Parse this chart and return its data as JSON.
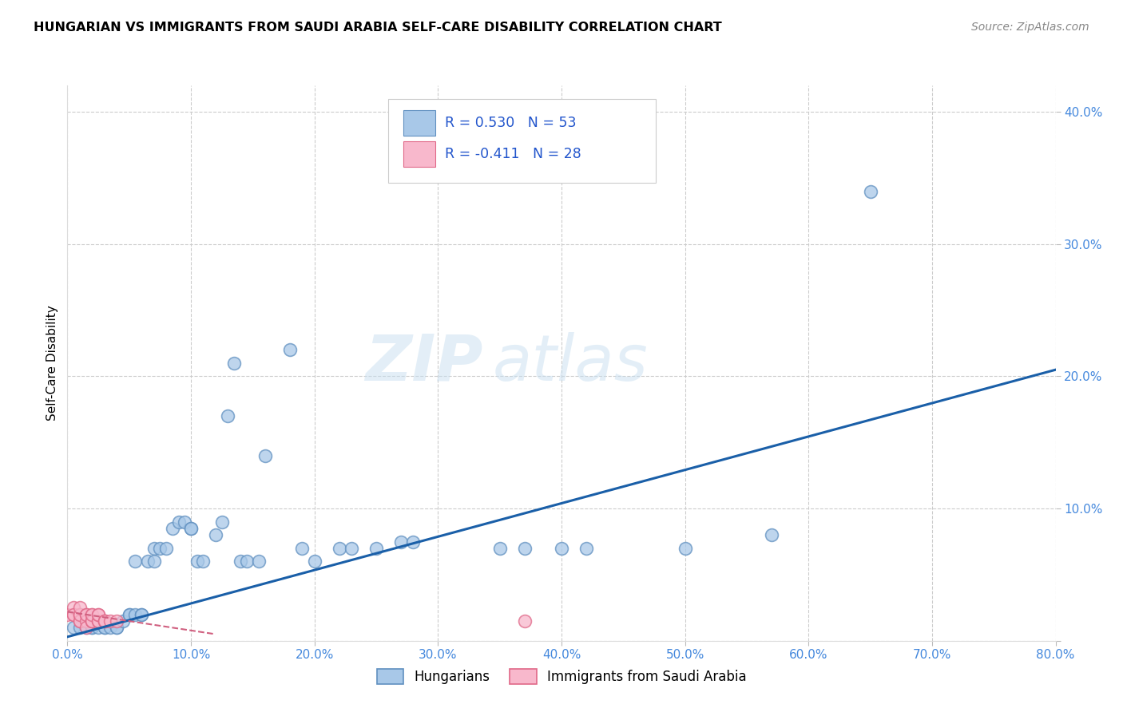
{
  "title": "HUNGARIAN VS IMMIGRANTS FROM SAUDI ARABIA SELF-CARE DISABILITY CORRELATION CHART",
  "source": "Source: ZipAtlas.com",
  "ylabel": "Self-Care Disability",
  "xlim": [
    0.0,
    0.8
  ],
  "ylim": [
    0.0,
    0.42
  ],
  "xticks": [
    0.0,
    0.1,
    0.2,
    0.3,
    0.4,
    0.5,
    0.6,
    0.7,
    0.8
  ],
  "yticks": [
    0.0,
    0.1,
    0.2,
    0.3,
    0.4
  ],
  "ytick_labels": [
    "",
    "10.0%",
    "20.0%",
    "30.0%",
    "40.0%"
  ],
  "xtick_labels": [
    "0.0%",
    "10.0%",
    "20.0%",
    "30.0%",
    "40.0%",
    "50.0%",
    "60.0%",
    "70.0%",
    "80.0%"
  ],
  "hungarian_x": [
    0.005,
    0.01,
    0.015,
    0.02,
    0.02,
    0.025,
    0.03,
    0.03,
    0.035,
    0.04,
    0.04,
    0.045,
    0.05,
    0.05,
    0.055,
    0.055,
    0.06,
    0.06,
    0.065,
    0.07,
    0.07,
    0.075,
    0.08,
    0.085,
    0.09,
    0.095,
    0.1,
    0.1,
    0.105,
    0.11,
    0.12,
    0.125,
    0.13,
    0.135,
    0.14,
    0.145,
    0.155,
    0.16,
    0.18,
    0.19,
    0.2,
    0.22,
    0.23,
    0.25,
    0.27,
    0.28,
    0.35,
    0.37,
    0.4,
    0.42,
    0.5,
    0.57,
    0.65
  ],
  "hungarian_y": [
    0.01,
    0.01,
    0.01,
    0.01,
    0.01,
    0.01,
    0.01,
    0.01,
    0.01,
    0.01,
    0.01,
    0.015,
    0.02,
    0.02,
    0.02,
    0.06,
    0.02,
    0.02,
    0.06,
    0.06,
    0.07,
    0.07,
    0.07,
    0.085,
    0.09,
    0.09,
    0.085,
    0.085,
    0.06,
    0.06,
    0.08,
    0.09,
    0.17,
    0.21,
    0.06,
    0.06,
    0.06,
    0.14,
    0.22,
    0.07,
    0.06,
    0.07,
    0.07,
    0.07,
    0.075,
    0.075,
    0.07,
    0.07,
    0.07,
    0.07,
    0.07,
    0.08,
    0.34
  ],
  "saudi_x": [
    0.0,
    0.005,
    0.005,
    0.005,
    0.01,
    0.01,
    0.01,
    0.01,
    0.01,
    0.015,
    0.015,
    0.015,
    0.015,
    0.02,
    0.02,
    0.02,
    0.02,
    0.02,
    0.025,
    0.025,
    0.025,
    0.025,
    0.03,
    0.03,
    0.03,
    0.035,
    0.04,
    0.37
  ],
  "saudi_y": [
    0.02,
    0.02,
    0.025,
    0.02,
    0.02,
    0.015,
    0.015,
    0.02,
    0.025,
    0.02,
    0.015,
    0.01,
    0.02,
    0.015,
    0.02,
    0.015,
    0.015,
    0.02,
    0.015,
    0.015,
    0.02,
    0.02,
    0.015,
    0.015,
    0.015,
    0.015,
    0.015,
    0.015
  ],
  "reg_line_start_x": 0.0,
  "reg_line_end_x": 0.8,
  "reg_line_start_y": 0.003,
  "reg_line_end_y": 0.205,
  "pink_line_start_x": 0.0,
  "pink_line_end_x": 0.12,
  "pink_line_start_y": 0.022,
  "pink_line_end_y": 0.005,
  "hungarian_color": "#a8c8e8",
  "saudi_color": "#f8b8cc",
  "hungarian_edge": "#6090c0",
  "saudi_edge": "#e06888",
  "blue_line_color": "#1a5fa8",
  "pink_line_color": "#d06080",
  "R_hungarian": 0.53,
  "N_hungarian": 53,
  "R_saudi": -0.411,
  "N_saudi": 28,
  "legend_blue_color": "#a8c8e8",
  "legend_pink_color": "#f8b8cc",
  "r_value_color": "#2255cc",
  "watermark_zip": "ZIP",
  "watermark_atlas": "atlas",
  "background_color": "#ffffff",
  "grid_color": "#cccccc",
  "axis_label_color": "#4488dd",
  "title_color": "#000000",
  "source_color": "#888888"
}
